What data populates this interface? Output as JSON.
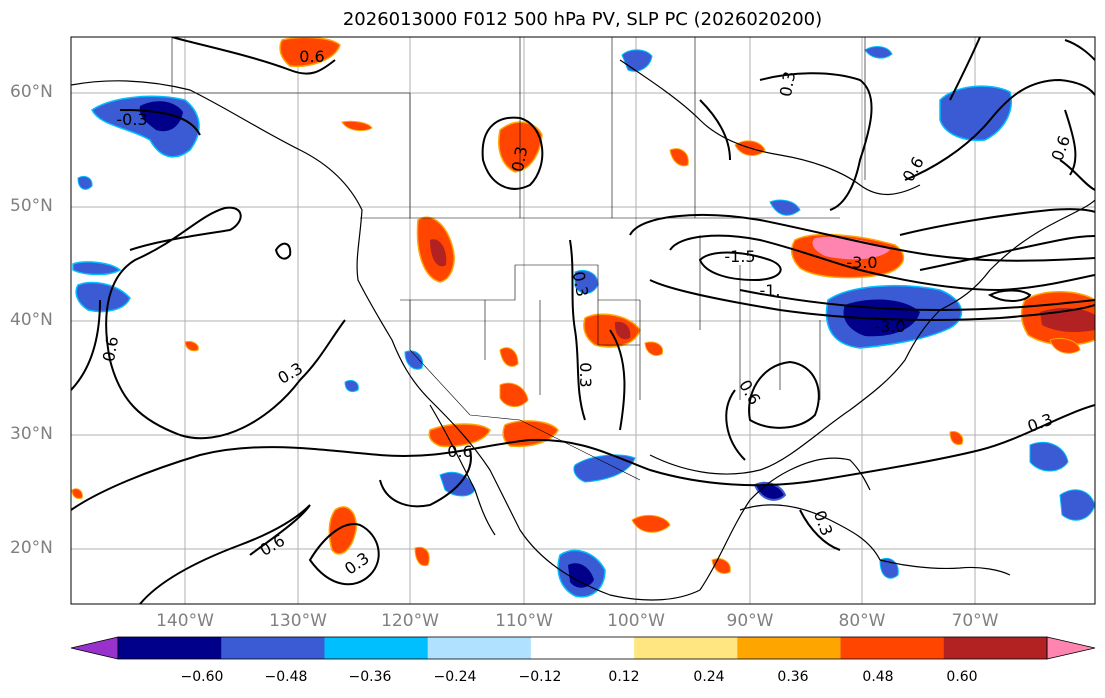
{
  "title": "2026013000 F012 500 hPa PV, SLP PC (2026020200)",
  "axes": {
    "lat_labels": [
      "60°N",
      "50°N",
      "40°N",
      "30°N",
      "20°N"
    ],
    "lon_labels": [
      "140°W",
      "130°W",
      "120°W",
      "110°W",
      "100°W",
      "90°W",
      "80°W",
      "70°W"
    ]
  },
  "contour_labels": [
    "0.6",
    "0.3",
    "0.3",
    "0.3",
    "0.6",
    "-1.5",
    "-1.",
    "-3.0",
    "-3.0",
    "0.6",
    "0.3",
    "0.6",
    "0.3",
    "0.3",
    "0.6",
    "0.3",
    "0.6",
    "0.3",
    "0.6",
    "-0.3"
  ],
  "colorbar": {
    "ticks": [
      "−0.60",
      "−0.48",
      "−0.36",
      "−0.24",
      "−0.12",
      "0.12",
      "0.24",
      "0.36",
      "0.48",
      "0.60"
    ],
    "colors": [
      "#9932cc",
      "#00008b",
      "#3a5bd4",
      "#00bfff",
      "#b0e2ff",
      "#ffffff",
      "#ffe680",
      "#ffa500",
      "#ff4500",
      "#b22222",
      "#ff85b0"
    ]
  },
  "colors": {
    "gridline": "#b0b0b0",
    "axis_label": "#808080"
  }
}
